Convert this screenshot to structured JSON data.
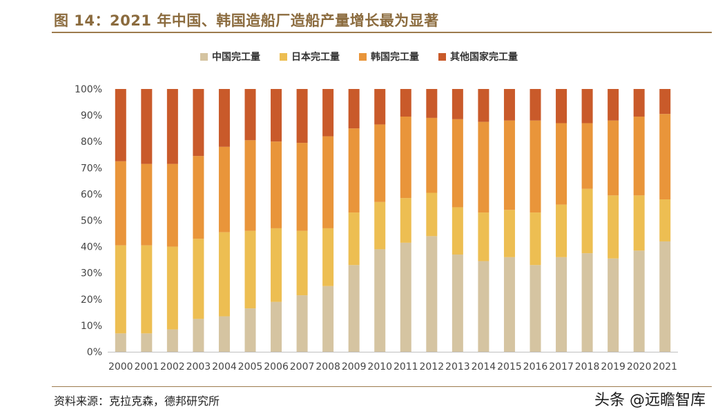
{
  "title": "图 14：2021 年中国、韩国造船厂造船产量增长最为显著",
  "source": "资料来源：克拉克森，德邦研究所",
  "watermark": "头条 @远瞻智库",
  "colors": {
    "china": "#D5C4A1",
    "japan": "#EDBE52",
    "korea": "#E9953A",
    "others": "#C95A2A",
    "rule": "#9C7A4D"
  },
  "chart_data": {
    "type": "bar",
    "stacked": true,
    "percent": true,
    "categories": [
      "2000",
      "2001",
      "2002",
      "2003",
      "2004",
      "2005",
      "2006",
      "2007",
      "2008",
      "2009",
      "2010",
      "2011",
      "2012",
      "2013",
      "2014",
      "2015",
      "2016",
      "2017",
      "2018",
      "2019",
      "2020",
      "2021"
    ],
    "series": [
      {
        "name": "中国完工量",
        "values": [
          7,
          7,
          8.5,
          12.5,
          13.5,
          16.5,
          19,
          21.5,
          25,
          33,
          39,
          41.5,
          44,
          37,
          34.5,
          36,
          33,
          36,
          37.5,
          35.5,
          38.5,
          42
        ]
      },
      {
        "name": "日本完工量",
        "values": [
          33.5,
          33.5,
          31.5,
          30.5,
          32,
          29.5,
          28,
          24.5,
          22,
          20,
          18,
          17,
          16.5,
          18,
          18.5,
          18,
          20,
          20,
          24.5,
          24,
          21,
          16
        ]
      },
      {
        "name": "韩国完工量",
        "values": [
          32,
          31,
          31.5,
          31.5,
          32.5,
          34.5,
          33,
          33.5,
          35,
          32,
          29.5,
          31,
          28.5,
          33.5,
          34.5,
          34,
          35,
          31,
          25,
          28.5,
          30,
          32.5
        ]
      },
      {
        "name": "其他国家完工量",
        "values": [
          27.5,
          28.5,
          28.5,
          25.5,
          22,
          19.5,
          20,
          20.5,
          18,
          15,
          13.5,
          10.5,
          11,
          11.5,
          12.5,
          12,
          12,
          13,
          13,
          12,
          10.5,
          9.5
        ]
      }
    ],
    "y_ticks": [
      "0%",
      "10%",
      "20%",
      "30%",
      "40%",
      "50%",
      "60%",
      "70%",
      "80%",
      "90%",
      "100%"
    ],
    "ylim": [
      0,
      100
    ],
    "grid": false,
    "legend_position": "top-center"
  }
}
